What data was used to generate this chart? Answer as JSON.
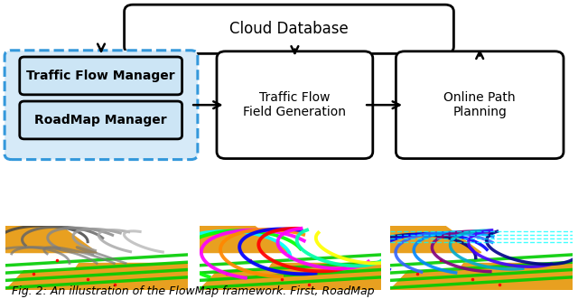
{
  "title": "Cloud Database",
  "box1_line1": "Traffic Flow Manager",
  "box1_line2": "RoadMap Manager",
  "box2_line1": "Traffic Flow",
  "box2_line2": "Field Generation",
  "box3_line1": "Online Path",
  "box3_line2": "Planning",
  "caption": "Fig. 2: An illustration of the FlowMap framework. First, RoadMap",
  "bg_color": "#ffffff",
  "box_fill": "#ffffff",
  "dashed_box_fill": "#d6eaf8",
  "dashed_box_stroke": "#3498db",
  "inner_box_fill": "#cce5f5",
  "text_color": "#000000",
  "arrow_color": "#000000",
  "font_size_title": 12,
  "font_size_box": 10,
  "font_size_caption": 9
}
